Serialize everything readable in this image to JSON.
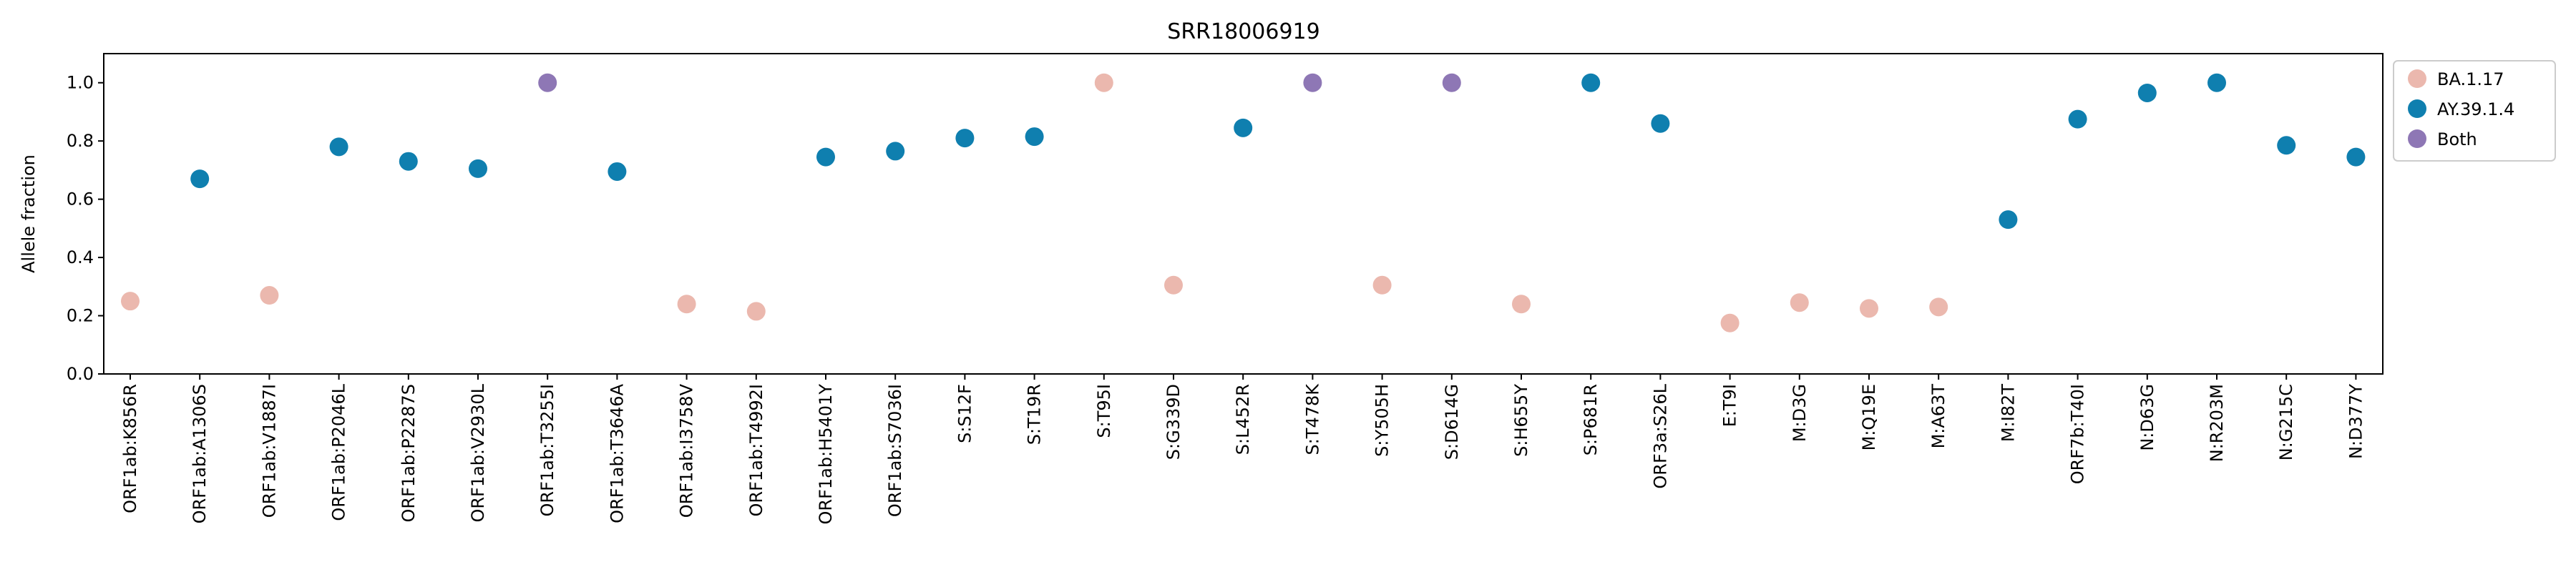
{
  "chart_data": {
    "type": "scatter",
    "title": "SRR18006919",
    "xlabel": "",
    "ylabel": "Allele fraction",
    "ylim": [
      0.0,
      1.1
    ],
    "yticks": [
      "0.0",
      "0.2",
      "0.4",
      "0.6",
      "0.8",
      "1.0"
    ],
    "grid": false,
    "legend_position": "outside-right-top",
    "categories": [
      "ORF1ab:K856R",
      "ORF1ab:A1306S",
      "ORF1ab:V1887I",
      "ORF1ab:P2046L",
      "ORF1ab:P2287S",
      "ORF1ab:V2930L",
      "ORF1ab:T3255I",
      "ORF1ab:T3646A",
      "ORF1ab:I3758V",
      "ORF1ab:T4992I",
      "ORF1ab:H5401Y",
      "ORF1ab:S7036I",
      "S:S12F",
      "S:T19R",
      "S:T95I",
      "S:G339D",
      "S:L452R",
      "S:T478K",
      "S:Y505H",
      "S:D614G",
      "S:H655Y",
      "S:P681R",
      "ORF3a:S26L",
      "E:T9I",
      "M:D3G",
      "M:Q19E",
      "M:A63T",
      "M:I82T",
      "ORF7b:T40I",
      "N:D63G",
      "N:R203M",
      "N:G215C",
      "N:D377Y"
    ],
    "values": [
      0.25,
      0.67,
      0.27,
      0.78,
      0.73,
      0.705,
      1.0,
      0.695,
      0.24,
      0.215,
      0.745,
      0.765,
      0.81,
      0.815,
      1.0,
      0.305,
      0.845,
      1.0,
      0.305,
      1.0,
      0.24,
      1.0,
      0.86,
      0.175,
      0.245,
      0.225,
      0.23,
      0.53,
      0.875,
      0.965,
      1.0,
      0.785,
      0.745
    ],
    "groups": [
      "BA.1.17",
      "AY.39.1.4",
      "BA.1.17",
      "AY.39.1.4",
      "AY.39.1.4",
      "AY.39.1.4",
      "Both",
      "AY.39.1.4",
      "BA.1.17",
      "BA.1.17",
      "AY.39.1.4",
      "AY.39.1.4",
      "AY.39.1.4",
      "AY.39.1.4",
      "BA.1.17",
      "BA.1.17",
      "AY.39.1.4",
      "Both",
      "BA.1.17",
      "Both",
      "BA.1.17",
      "AY.39.1.4",
      "AY.39.1.4",
      "BA.1.17",
      "BA.1.17",
      "BA.1.17",
      "BA.1.17",
      "AY.39.1.4",
      "AY.39.1.4",
      "AY.39.1.4",
      "AY.39.1.4",
      "AY.39.1.4",
      "AY.39.1.4"
    ],
    "legend": [
      {
        "name": "BA.1.17",
        "color": "#EBB8AE"
      },
      {
        "name": "AY.39.1.4",
        "color": "#0F7FAF"
      },
      {
        "name": "Both",
        "color": "#8E77B5"
      }
    ]
  }
}
